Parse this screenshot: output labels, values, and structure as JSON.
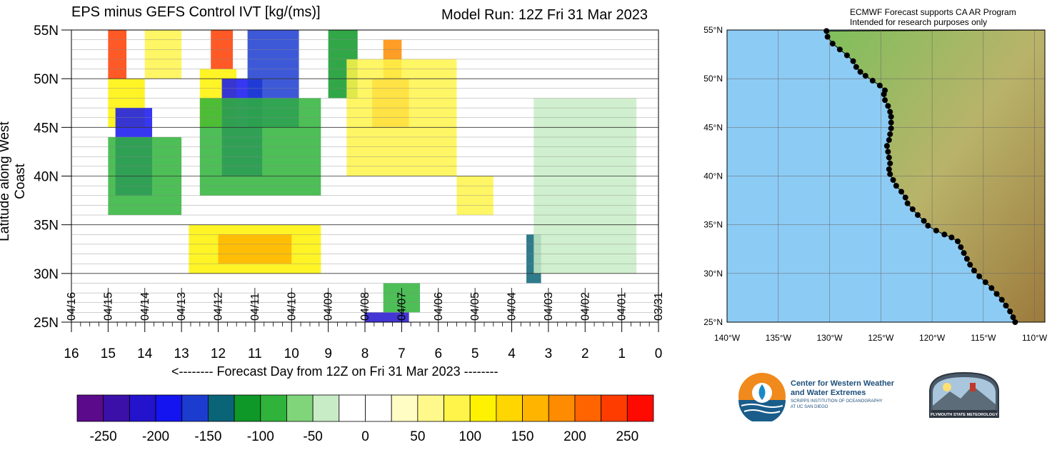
{
  "titles": {
    "left": "EPS minus GEFS Control IVT [kg/(ms)]",
    "right": "Model Run: 12Z Fri 31 Mar 2023",
    "ylabel": "Latitude along West Coast",
    "xaxis_title": "<-------- Forecast Day from 12Z on Fri 31 Mar 2023 --------"
  },
  "note": {
    "line1": "ECMWF Forecast supports CA AR Program",
    "line2": "Intended for research purposes only"
  },
  "logos": {
    "cw3e_line1": "Center for Western Weather",
    "cw3e_line2": "and Water Extremes",
    "cw3e_sub1": "SCRIPPS INSTITUTION OF OCEANOGRAPHY",
    "cw3e_sub2": "AT UC SAN DIEGO",
    "plymouth": "PLYMOUTH STATE METEOROLOGY"
  },
  "chart_data": [
    {
      "type": "heatmap",
      "title": "EPS minus GEFS Control IVT [kg/(ms)]",
      "subtitle": "Model Run: 12Z Fri 31 Mar 2023",
      "xlabel": "<-------- Forecast Day from 12Z on Fri 31 Mar 2023 --------",
      "ylabel": "Latitude along West Coast",
      "x_ticks": [
        16,
        15,
        14,
        13,
        12,
        11,
        10,
        9,
        8,
        7,
        6,
        5,
        4,
        3,
        2,
        1,
        0
      ],
      "xlim": [
        16,
        0
      ],
      "date_labels": [
        "04/16",
        "04/15",
        "04/14",
        "04/13",
        "04/12",
        "04/11",
        "04/10",
        "04/09",
        "04/08",
        "04/07",
        "04/06",
        "04/05",
        "04/04",
        "04/03",
        "04/02",
        "04/01",
        "03/31"
      ],
      "y_ticks": [
        "25N",
        "30N",
        "35N",
        "40N",
        "45N",
        "50N",
        "55N"
      ],
      "y_values": [
        25,
        30,
        35,
        40,
        45,
        50,
        55
      ],
      "ylim": [
        25,
        55
      ],
      "regions": [
        {
          "x": [
            15,
            14.5
          ],
          "y": [
            50,
            55
          ],
          "value": 240
        },
        {
          "x": [
            15,
            14
          ],
          "y": [
            45,
            50
          ],
          "value": 120
        },
        {
          "x": [
            14,
            13
          ],
          "y": [
            50,
            55
          ],
          "value": 90
        },
        {
          "x": [
            14.8,
            13.8
          ],
          "y": [
            38,
            47
          ],
          "value": -200
        },
        {
          "x": [
            15,
            13
          ],
          "y": [
            36,
            44
          ],
          "value": -90
        },
        {
          "x": [
            12.2,
            11.6
          ],
          "y": [
            51,
            55
          ],
          "value": 240
        },
        {
          "x": [
            12.5,
            11.5
          ],
          "y": [
            45,
            51
          ],
          "value": 110
        },
        {
          "x": [
            11.9,
            10.8
          ],
          "y": [
            40,
            50
          ],
          "value": -200
        },
        {
          "x": [
            11.2,
            9.8
          ],
          "y": [
            45,
            55
          ],
          "value": -170
        },
        {
          "x": [
            12.5,
            9.2
          ],
          "y": [
            38,
            48
          ],
          "value": -90
        },
        {
          "x": [
            9,
            8.2
          ],
          "y": [
            48,
            55
          ],
          "value": -110
        },
        {
          "x": [
            7.8,
            6.8
          ],
          "y": [
            45,
            50
          ],
          "value": 210
        },
        {
          "x": [
            7.5,
            7
          ],
          "y": [
            50,
            54
          ],
          "value": 190
        },
        {
          "x": [
            8.5,
            5.5
          ],
          "y": [
            40,
            52
          ],
          "value": 80
        },
        {
          "x": [
            12.8,
            9.2
          ],
          "y": [
            30,
            35
          ],
          "value": 110
        },
        {
          "x": [
            12,
            10
          ],
          "y": [
            31,
            34
          ],
          "value": 150
        },
        {
          "x": [
            8,
            6.8
          ],
          "y": [
            25,
            26
          ],
          "value": -220
        },
        {
          "x": [
            7.5,
            6.5
          ],
          "y": [
            26,
            29
          ],
          "value": -90
        },
        {
          "x": [
            5.5,
            4.5
          ],
          "y": [
            36,
            40
          ],
          "value": 80
        },
        {
          "x": [
            3.6,
            3.2
          ],
          "y": [
            29,
            34
          ],
          "value": -150
        },
        {
          "x": [
            3.4,
            0.6
          ],
          "y": [
            30,
            48
          ],
          "value": -50
        }
      ],
      "colorbar": {
        "ticks": [
          -250,
          -200,
          -150,
          -100,
          -50,
          0,
          50,
          100,
          150,
          200,
          250
        ],
        "colors": [
          "#5b0a8c",
          "#3a10a8",
          "#2313cc",
          "#1414f0",
          "#1c3cd0",
          "#0a6478",
          "#0e9828",
          "#2fb33a",
          "#80d47a",
          "#c8ecc6",
          "#ffffff",
          "#ffffff",
          "#fffcc4",
          "#fff88a",
          "#fff44a",
          "#fff200",
          "#ffd600",
          "#ffb400",
          "#ff8c00",
          "#ff6400",
          "#ff3c00",
          "#ff0a00"
        ]
      }
    },
    {
      "type": "map",
      "description_labels": true,
      "lat_ticks": [
        "25°N",
        "30°N",
        "35°N",
        "40°N",
        "45°N",
        "50°N",
        "55°N"
      ],
      "lat_values": [
        25,
        30,
        35,
        40,
        45,
        50,
        55
      ],
      "lon_ticks": [
        "140°W",
        "135°W",
        "130°W",
        "125°W",
        "120°W",
        "115°W",
        "110°W"
      ],
      "lon_values": [
        -140,
        -135,
        -130,
        -125,
        -120,
        -115,
        -110
      ],
      "lon_range": [
        -140,
        -109
      ],
      "lat_range": [
        25,
        55
      ],
      "coast_points": [
        [
          -130.3,
          54.9
        ],
        [
          -130.2,
          54.3
        ],
        [
          -129.7,
          53.6
        ],
        [
          -129.0,
          53.0
        ],
        [
          -128.3,
          52.4
        ],
        [
          -127.7,
          51.8
        ],
        [
          -127.4,
          51.2
        ],
        [
          -127.0,
          50.7
        ],
        [
          -126.5,
          50.3
        ],
        [
          -125.8,
          49.8
        ],
        [
          -125.1,
          49.3
        ],
        [
          -124.6,
          48.8
        ],
        [
          -124.7,
          48.4
        ],
        [
          -124.6,
          47.8
        ],
        [
          -124.3,
          47.2
        ],
        [
          -124.1,
          46.6
        ],
        [
          -124.0,
          46.1
        ],
        [
          -124.0,
          45.5
        ],
        [
          -124.0,
          44.9
        ],
        [
          -124.1,
          44.3
        ],
        [
          -124.2,
          43.7
        ],
        [
          -124.4,
          43.1
        ],
        [
          -124.3,
          42.5
        ],
        [
          -124.2,
          41.9
        ],
        [
          -124.1,
          41.3
        ],
        [
          -124.2,
          40.7
        ],
        [
          -124.1,
          40.2
        ],
        [
          -123.8,
          39.6
        ],
        [
          -123.5,
          39.0
        ],
        [
          -123.0,
          38.4
        ],
        [
          -122.6,
          37.8
        ],
        [
          -122.4,
          37.2
        ],
        [
          -121.9,
          36.6
        ],
        [
          -121.4,
          36.0
        ],
        [
          -120.8,
          35.4
        ],
        [
          -120.4,
          34.9
        ],
        [
          -119.6,
          34.4
        ],
        [
          -118.8,
          34.0
        ],
        [
          -118.1,
          33.7
        ],
        [
          -117.5,
          33.3
        ],
        [
          -117.2,
          32.7
        ],
        [
          -116.9,
          32.1
        ],
        [
          -116.6,
          31.5
        ],
        [
          -116.3,
          30.9
        ],
        [
          -115.9,
          30.3
        ],
        [
          -115.4,
          29.7
        ],
        [
          -114.8,
          29.1
        ],
        [
          -114.2,
          28.5
        ],
        [
          -113.7,
          27.9
        ],
        [
          -113.2,
          27.3
        ],
        [
          -112.8,
          26.7
        ],
        [
          -112.4,
          26.1
        ],
        [
          -112.1,
          25.5
        ],
        [
          -111.9,
          25.0
        ]
      ]
    }
  ]
}
